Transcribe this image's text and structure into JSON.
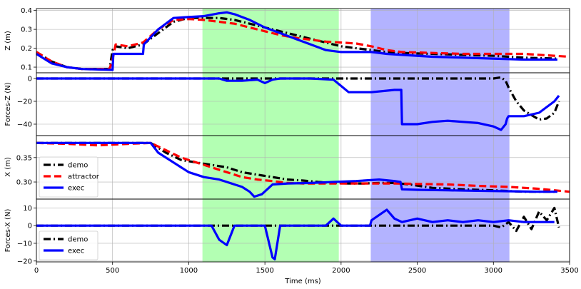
{
  "chart_data": [
    {
      "type": "line",
      "ylabel": "Z (m)",
      "ylim": [
        0.07,
        0.41
      ],
      "yticks": [
        0.1,
        0.2,
        0.3,
        0.4
      ],
      "ytick_labels": [
        "0.1",
        "0.2",
        "0.3",
        "0.4"
      ],
      "grid": true,
      "series": [
        {
          "name": "demo",
          "color": "#000000",
          "style": "dashdot",
          "x": [
            0,
            100,
            200,
            300,
            480,
            500,
            520,
            600,
            700,
            800,
            900,
            1000,
            1100,
            1200,
            1300,
            1400,
            1500,
            1600,
            1700,
            1800,
            1900,
            2000,
            2100,
            2200,
            2300,
            2400,
            2600,
            2800,
            3000,
            3200,
            3420
          ],
          "y": [
            0.18,
            0.13,
            0.1,
            0.09,
            0.09,
            0.19,
            0.21,
            0.2,
            0.22,
            0.28,
            0.34,
            0.36,
            0.36,
            0.36,
            0.35,
            0.33,
            0.31,
            0.29,
            0.27,
            0.25,
            0.23,
            0.21,
            0.2,
            0.19,
            0.18,
            0.175,
            0.17,
            0.165,
            0.16,
            0.15,
            0.145
          ]
        },
        {
          "name": "attractor",
          "color": "#ff0000",
          "style": "dashed",
          "x": [
            0,
            100,
            200,
            300,
            480,
            500,
            520,
            600,
            700,
            800,
            900,
            1000,
            1100,
            1200,
            1300,
            1400,
            1500,
            1600,
            1700,
            1800,
            1900,
            2000,
            2100,
            2200,
            2300,
            2400,
            2600,
            2800,
            3000,
            3200,
            3500
          ],
          "y": [
            0.18,
            0.13,
            0.1,
            0.09,
            0.09,
            0.14,
            0.22,
            0.21,
            0.23,
            0.3,
            0.35,
            0.355,
            0.35,
            0.34,
            0.33,
            0.31,
            0.29,
            0.27,
            0.255,
            0.245,
            0.235,
            0.23,
            0.225,
            0.21,
            0.19,
            0.18,
            0.175,
            0.17,
            0.17,
            0.17,
            0.155
          ]
        },
        {
          "name": "exec",
          "color": "#0000ff",
          "style": "solid",
          "x": [
            0,
            100,
            200,
            300,
            500,
            505,
            700,
            705,
            800,
            900,
            1000,
            1100,
            1200,
            1250,
            1300,
            1400,
            1500,
            1600,
            1700,
            1800,
            1900,
            2000,
            2100,
            2200,
            2300,
            2400,
            2600,
            2800,
            3000,
            3200,
            3420
          ],
          "y": [
            0.17,
            0.12,
            0.1,
            0.09,
            0.085,
            0.17,
            0.17,
            0.22,
            0.3,
            0.36,
            0.365,
            0.37,
            0.385,
            0.39,
            0.38,
            0.35,
            0.31,
            0.28,
            0.25,
            0.22,
            0.19,
            0.18,
            0.18,
            0.18,
            0.17,
            0.165,
            0.155,
            0.15,
            0.145,
            0.14,
            0.14
          ]
        }
      ]
    },
    {
      "type": "line",
      "ylabel": "Forces-Z (N)",
      "ylim": [
        -50,
        5
      ],
      "yticks": [
        -40,
        -20,
        0
      ],
      "ytick_labels": [
        "−40",
        "−20",
        "0"
      ],
      "grid": true,
      "series": [
        {
          "name": "demo",
          "color": "#000000",
          "style": "dashdot",
          "x": [
            0,
            500,
            1000,
            1500,
            2000,
            2500,
            3000,
            3050,
            3080,
            3100,
            3150,
            3200,
            3250,
            3300,
            3350,
            3400,
            3430
          ],
          "y": [
            0,
            0,
            0,
            0,
            0,
            0,
            0,
            1,
            -2,
            -8,
            -20,
            -28,
            -32,
            -36,
            -35,
            -30,
            -20
          ]
        },
        {
          "name": "exec",
          "color": "#0000ff",
          "style": "solid",
          "x": [
            0,
            500,
            1000,
            1200,
            1250,
            1350,
            1450,
            1500,
            1550,
            1600,
            1800,
            1950,
            2050,
            2200,
            2350,
            2395,
            2400,
            2500,
            2600,
            2700,
            2800,
            2900,
            3000,
            3050,
            3080,
            3090,
            3100,
            3200,
            3300,
            3350,
            3400,
            3430
          ],
          "y": [
            0,
            0,
            0,
            0,
            -2,
            -2,
            -1,
            -4,
            -1,
            0,
            0,
            -1,
            -12,
            -12,
            -10,
            -10,
            -40,
            -40,
            -38,
            -37,
            -38,
            -39,
            -42,
            -45,
            -40,
            -35,
            -33,
            -33,
            -30,
            -25,
            -20,
            -15
          ]
        }
      ]
    },
    {
      "type": "line",
      "ylabel": "X (m)",
      "ylim": [
        0.265,
        0.395
      ],
      "yticks": [
        0.3,
        0.35
      ],
      "ytick_labels": [
        "0.30",
        "0.35"
      ],
      "grid": true,
      "legend": {
        "entries": [
          "demo",
          "attractor",
          "exec"
        ],
        "placement": "lower-left"
      },
      "series": [
        {
          "name": "demo",
          "color": "#000000",
          "style": "dashdot",
          "x": [
            0,
            200,
            400,
            600,
            750,
            850,
            950,
            1050,
            1150,
            1250,
            1350,
            1450,
            1550,
            1650,
            1750,
            1850,
            1950,
            2050,
            2150,
            2250,
            2350,
            2450,
            2600,
            2800,
            3000,
            3200,
            3420
          ],
          "y": [
            0.38,
            0.38,
            0.38,
            0.38,
            0.38,
            0.36,
            0.345,
            0.34,
            0.335,
            0.33,
            0.32,
            0.315,
            0.31,
            0.305,
            0.303,
            0.3,
            0.298,
            0.297,
            0.297,
            0.298,
            0.298,
            0.295,
            0.288,
            0.285,
            0.283,
            0.28,
            0.28
          ]
        },
        {
          "name": "attractor",
          "color": "#ff0000",
          "style": "dashed",
          "x": [
            0,
            200,
            400,
            600,
            750,
            850,
            950,
            1050,
            1150,
            1250,
            1350,
            1450,
            1550,
            1650,
            1750,
            1850,
            1950,
            2050,
            2200,
            2350,
            2500,
            2700,
            2900,
            3100,
            3300,
            3500
          ],
          "y": [
            0.38,
            0.378,
            0.375,
            0.378,
            0.38,
            0.365,
            0.35,
            0.34,
            0.33,
            0.32,
            0.31,
            0.305,
            0.302,
            0.298,
            0.297,
            0.297,
            0.297,
            0.297,
            0.297,
            0.297,
            0.296,
            0.295,
            0.292,
            0.29,
            0.286,
            0.28
          ]
        },
        {
          "name": "exec",
          "color": "#0000ff",
          "style": "solid",
          "x": [
            0,
            200,
            400,
            600,
            750,
            800,
            900,
            1000,
            1100,
            1200,
            1250,
            1300,
            1350,
            1400,
            1430,
            1480,
            1550,
            1650,
            1800,
            1950,
            2100,
            2250,
            2350,
            2390,
            2400,
            2500,
            2700,
            2900,
            3100,
            3300,
            3420
          ],
          "y": [
            0.38,
            0.38,
            0.38,
            0.38,
            0.38,
            0.36,
            0.34,
            0.32,
            0.31,
            0.305,
            0.3,
            0.295,
            0.29,
            0.28,
            0.27,
            0.275,
            0.295,
            0.297,
            0.298,
            0.3,
            0.302,
            0.305,
            0.302,
            0.3,
            0.285,
            0.284,
            0.283,
            0.282,
            0.281,
            0.28,
            0.28
          ]
        }
      ]
    },
    {
      "type": "line",
      "ylabel": "Forces-X (N)",
      "xlabel": "Time (ms)",
      "ylim": [
        -20.5,
        15
      ],
      "xlim": [
        0,
        3500
      ],
      "xticks": [
        0,
        500,
        1000,
        1500,
        2000,
        2500,
        3000,
        3500
      ],
      "xtick_labels": [
        "0",
        "500",
        "1000",
        "1500",
        "2000",
        "2500",
        "3000",
        "3500"
      ],
      "yticks": [
        -20,
        -10,
        0,
        10
      ],
      "ytick_labels": [
        "−20",
        "−10",
        "0",
        "10"
      ],
      "grid": true,
      "legend": {
        "entries": [
          "demo",
          "exec"
        ],
        "placement": "lower-left"
      },
      "series": [
        {
          "name": "demo",
          "color": "#000000",
          "style": "dashdot",
          "x": [
            0,
            500,
            1000,
            1500,
            2000,
            2500,
            3000,
            3050,
            3100,
            3150,
            3200,
            3250,
            3300,
            3350,
            3400,
            3430
          ],
          "y": [
            0,
            0,
            0,
            0,
            0,
            0,
            0,
            -1,
            2,
            -3,
            5,
            -2,
            8,
            3,
            10,
            -1
          ]
        },
        {
          "name": "exec",
          "color": "#0000ff",
          "style": "solid",
          "x": [
            0,
            500,
            1000,
            1100,
            1150,
            1200,
            1250,
            1300,
            1500,
            1550,
            1565,
            1600,
            1700,
            1900,
            1950,
            2000,
            2100,
            2190,
            2200,
            2250,
            2300,
            2350,
            2400,
            2500,
            2600,
            2700,
            2800,
            2900,
            3000,
            3100,
            3200,
            3300,
            3400
          ],
          "y": [
            0,
            0,
            0,
            0,
            0,
            -8,
            -11,
            0,
            0,
            -18,
            -19,
            0,
            0,
            0,
            4,
            0,
            0,
            0,
            3,
            6,
            9,
            4,
            2,
            4,
            2,
            3,
            2,
            3,
            2,
            3,
            2,
            2,
            2
          ]
        }
      ]
    }
  ],
  "shaded_regions": [
    {
      "x": [
        1090,
        1985
      ],
      "color": "#99ff99"
    },
    {
      "x": [
        2195,
        3105
      ],
      "color": "#9999ff"
    }
  ]
}
